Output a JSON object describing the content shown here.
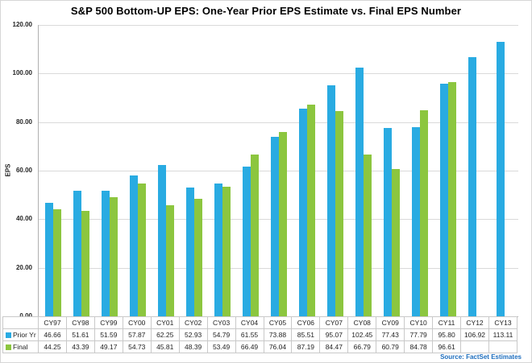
{
  "title": "S&P 500 Bottom-UP EPS: One-Year Prior EPS Estimate vs. Final EPS Number",
  "source": "Source: FactSet Estimates",
  "colors": {
    "prior_yr_bar": "#29ABE2",
    "final_bar": "#8CC63F",
    "gridline": "#D9D9D9",
    "axis_line": "#B0B0B0",
    "table_border": "#C9C9C9",
    "source_text": "#1F6FBF",
    "title_text": "#000000"
  },
  "chart_data": {
    "type": "bar",
    "title": "S&P 500 Bottom-UP EPS: One-Year Prior EPS Estimate vs. Final EPS Number",
    "xlabel": "",
    "ylabel": "EPS",
    "ylim": [
      0,
      120
    ],
    "ytick_step": 20,
    "ytick_labels": [
      "0.00",
      "20.00",
      "40.00",
      "60.00",
      "80.00",
      "100.00",
      "120.00"
    ],
    "grid": true,
    "legend_position": "data-table-left",
    "categories": [
      "CY97",
      "CY98",
      "CY99",
      "CY00",
      "CY01",
      "CY02",
      "CY03",
      "CY04",
      "CY05",
      "CY06",
      "CY07",
      "CY08",
      "CY09",
      "CY10",
      "CY11",
      "CY12",
      "CY13"
    ],
    "series": [
      {
        "name": "Prior Yr",
        "color": "#29ABE2",
        "values": [
          46.66,
          51.61,
          51.59,
          57.87,
          62.25,
          52.93,
          54.79,
          61.55,
          73.88,
          85.51,
          95.07,
          102.45,
          77.43,
          77.79,
          95.8,
          106.92,
          113.11
        ]
      },
      {
        "name": "Final",
        "color": "#8CC63F",
        "values": [
          44.25,
          43.39,
          49.17,
          54.73,
          45.81,
          48.39,
          53.49,
          66.49,
          76.04,
          87.19,
          84.47,
          66.79,
          60.79,
          84.78,
          96.61,
          null,
          null
        ]
      }
    ]
  }
}
